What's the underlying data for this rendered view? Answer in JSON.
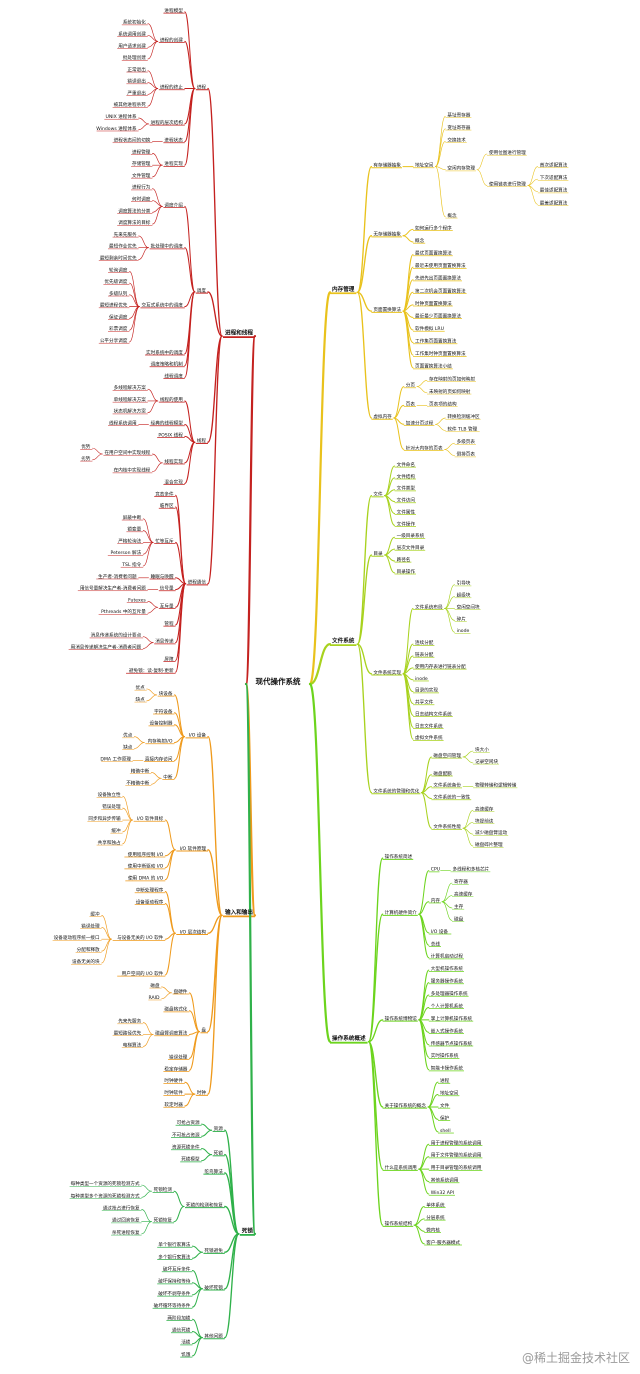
{
  "root": "现代操作系统",
  "watermark": "@稀土掘金技术社区",
  "colors": {
    "process": "#c4211f",
    "memory": "#e9c21c",
    "file": "#a8d21e",
    "overview": "#6cd41d",
    "io": "#ef9a1c",
    "deadlock": "#2fb14a"
  },
  "process": {
    "label": "进程和线程",
    "nodes": [
      {
        "label": "进程",
        "children": [
          {
            "label": "进程模型"
          },
          {
            "label": "进程的创建",
            "children": [
              {
                "label": "系统初始化"
              },
              {
                "label": "系统调用创建"
              },
              {
                "label": "用户请求创建"
              },
              {
                "label": "批处理创建"
              }
            ]
          },
          {
            "label": "进程的终止",
            "children": [
              {
                "label": "正常退出"
              },
              {
                "label": "错误退出"
              },
              {
                "label": "严重退出"
              },
              {
                "label": "被其他进程杀死"
              }
            ]
          },
          {
            "label": "进程的层次结构",
            "children": [
              {
                "label": "UNIX 进程体系"
              },
              {
                "label": "Windows 进程体系"
              }
            ]
          },
          {
            "label": "进程状态",
            "children": [
              {
                "label": "进程状态间的切换"
              }
            ]
          },
          {
            "label": "进程实现",
            "children": [
              {
                "label": "进程管理"
              },
              {
                "label": "存储管理"
              },
              {
                "label": "文件管理"
              }
            ]
          }
        ]
      },
      {
        "label": "调度",
        "children": [
          {
            "label": "调度介绍",
            "children": [
              {
                "label": "进程行为"
              },
              {
                "label": "何时调度"
              },
              {
                "label": "调度算法的分类"
              },
              {
                "label": "调度算法的目标"
              }
            ]
          },
          {
            "label": "批处理中的调度",
            "children": [
              {
                "label": "先来先服务"
              },
              {
                "label": "最短作业优先"
              },
              {
                "label": "最短剩余时间优先"
              }
            ]
          },
          {
            "label": "交互式系统中的调度",
            "children": [
              {
                "label": "轮询调度"
              },
              {
                "label": "优先级调度"
              },
              {
                "label": "多级队列"
              },
              {
                "label": "最短进程优先"
              },
              {
                "label": "保证调度"
              },
              {
                "label": "彩票调度"
              },
              {
                "label": "公平分享调度"
              }
            ]
          },
          {
            "label": "实时系统中的调度"
          },
          {
            "label": "调度策略和机制"
          },
          {
            "label": "线程调度"
          }
        ]
      },
      {
        "label": "线程",
        "children": [
          {
            "label": "线程的使用",
            "children": [
              {
                "label": "多线程解决方案"
              },
              {
                "label": "单线程解决方案"
              },
              {
                "label": "状态机解决方案"
              }
            ]
          },
          {
            "label": "经典的线程模型",
            "children": [
              {
                "label": "线程系统调用"
              }
            ]
          },
          {
            "label": "POSIX 线程"
          },
          {
            "label": "线程实现",
            "children": [
              {
                "label": "在用户空间中实现线程",
                "children": [
                  {
                    "label": "优势"
                  },
                  {
                    "label": "劣势"
                  }
                ]
              },
              {
                "label": "在内核中实现线程"
              }
            ]
          },
          {
            "label": "混合实现"
          }
        ]
      },
      {
        "label": "进程通信",
        "children": [
          {
            "label": "竞态条件"
          },
          {
            "label": "临界区"
          },
          {
            "label": "忙等互斥",
            "children": [
              {
                "label": "屏蔽中断"
              },
              {
                "label": "锁变量"
              },
              {
                "label": "严格轮询法"
              },
              {
                "label": "Peterson 解法"
              },
              {
                "label": "TSL 指令"
              }
            ]
          },
          {
            "label": "睡眠与唤醒",
            "children": [
              {
                "label": "生产者-消费者问题"
              }
            ]
          },
          {
            "label": "信号量",
            "children": [
              {
                "label": "用信号量解决生产者-消费者问题"
              }
            ]
          },
          {
            "label": "互斥量",
            "children": [
              {
                "label": "Futexes"
              },
              {
                "label": "Pthreads 中的互斥量"
              }
            ]
          },
          {
            "label": "管程"
          },
          {
            "label": "消息传递",
            "children": [
              {
                "label": "消息传递系统的设计要点"
              },
              {
                "label": "用消息传递解决生产者-消费者问题"
              }
            ]
          },
          {
            "label": "屏障"
          },
          {
            "label": "避免锁：读-复制-更新"
          }
        ]
      }
    ]
  },
  "io": {
    "label": "输入和输出",
    "nodes": [
      {
        "label": "I/O 设备",
        "children": [
          {
            "label": "块设备",
            "children": [
              {
                "label": "优点"
              },
              {
                "label": "缺点"
              }
            ]
          },
          {
            "label": "字符设备"
          },
          {
            "label": "设备控制器"
          },
          {
            "label": "内存映射I/O",
            "children": [
              {
                "label": "优点"
              },
              {
                "label": "缺点"
              }
            ]
          },
          {
            "label": "直接内存访问",
            "children": [
              {
                "label": "DMA 工作原理"
              }
            ]
          },
          {
            "label": "中断",
            "children": [
              {
                "label": "精确中断"
              },
              {
                "label": "不精确中断"
              }
            ]
          }
        ]
      },
      {
        "label": "I/O 软件原理",
        "children": [
          {
            "label": "I/O 软件目标",
            "children": [
              {
                "label": "设备独立性"
              },
              {
                "label": "错误处理"
              },
              {
                "label": "同步和异步传输"
              },
              {
                "label": "缓冲"
              },
              {
                "label": "共享和独占"
              }
            ]
          },
          {
            "label": "使用程序控制 I/O"
          },
          {
            "label": "使用中断驱动 I/O"
          },
          {
            "label": "使用 DMA 的 I/O"
          }
        ]
      },
      {
        "label": "I/O 层次结构",
        "children": [
          {
            "label": "中断处理程序"
          },
          {
            "label": "设备驱动程序"
          },
          {
            "label": "与设备无关的 I/O 软件",
            "children": [
              {
                "label": "缓冲"
              },
              {
                "label": "错误处理"
              },
              {
                "label": "设备驱动程序统一接口"
              },
              {
                "label": "分配和释放"
              },
              {
                "label": "设备无关的块"
              }
            ]
          },
          {
            "label": "用户空间的 I/O 软件"
          }
        ]
      },
      {
        "label": "盘",
        "children": [
          {
            "label": "盘硬件",
            "children": [
              {
                "label": "磁盘"
              },
              {
                "label": "RAID"
              }
            ]
          },
          {
            "label": "磁盘格式化"
          },
          {
            "label": "磁盘臂调度算法",
            "children": [
              {
                "label": "先来先服务"
              },
              {
                "label": "最短路径优先"
              },
              {
                "label": "电梯算法"
              }
            ]
          },
          {
            "label": "错误处理"
          },
          {
            "label": "稳定存储器"
          }
        ]
      },
      {
        "label": "时钟",
        "children": [
          {
            "label": "时钟硬件"
          },
          {
            "label": "时钟软件"
          },
          {
            "label": "软定时器"
          }
        ]
      }
    ]
  },
  "deadlock": {
    "label": "死锁",
    "nodes": [
      {
        "label": "资源",
        "children": [
          {
            "label": "可抢占资源"
          },
          {
            "label": "不可抢占资源"
          }
        ]
      },
      {
        "label": "死锁",
        "children": [
          {
            "label": "资源死锁条件"
          },
          {
            "label": "死锁模型"
          }
        ]
      },
      {
        "label": "鸵鸟算法"
      },
      {
        "label": "死锁的检测和恢复",
        "children": [
          {
            "label": "死锁检测",
            "children": [
              {
                "label": "每种类型一个资源的死锁检测方式"
              },
              {
                "label": "每种类型多个资源的死锁检测方式"
              }
            ]
          },
          {
            "label": "死锁恢复",
            "children": [
              {
                "label": "通过抢占进行恢复"
              },
              {
                "label": "通过回滚恢复"
              },
              {
                "label": "杀死进程恢复"
              }
            ]
          }
        ]
      },
      {
        "label": "死锁避免",
        "children": [
          {
            "label": "单个银行家算法"
          },
          {
            "label": "多个银行家算法"
          }
        ]
      },
      {
        "label": "破坏死锁",
        "children": [
          {
            "label": "破坏互斥条件"
          },
          {
            "label": "破坏保持和等待"
          },
          {
            "label": "破坏不剥夺条件"
          },
          {
            "label": "破坏循环等待条件"
          }
        ]
      },
      {
        "label": "其他问题",
        "children": [
          {
            "label": "两阶段加锁"
          },
          {
            "label": "通信死锁"
          },
          {
            "label": "活锁"
          },
          {
            "label": "饥饿"
          }
        ]
      }
    ]
  },
  "memory": {
    "label": "内存管理",
    "nodes": [
      {
        "label": "有存储器抽象",
        "children": [
          {
            "label": "地址空间",
            "children": [
              {
                "label": "基址寄存器"
              },
              {
                "label": "变址寄存器"
              },
              {
                "label": "交换技术"
              },
              {
                "label": "空闲内存管理",
                "children": [
                  {
                    "label": "使用位图进行管理"
                  },
                  {
                    "label": "使用链表进行管理",
                    "children": [
                      {
                        "label": "首次适配算法"
                      },
                      {
                        "label": "下次适配算法"
                      },
                      {
                        "label": "最佳适配算法"
                      },
                      {
                        "label": "最差适配算法"
                      }
                    ]
                  }
                ]
              },
              {
                "label": "概念"
              }
            ]
          }
        ]
      },
      {
        "label": "无存储器抽象",
        "children": [
          {
            "label": "如何运行多个程序"
          },
          {
            "label": "概念"
          }
        ]
      },
      {
        "label": "页面置换算法",
        "children": [
          {
            "label": "最优页面置换算法"
          },
          {
            "label": "最近未使用页面置换算法"
          },
          {
            "label": "先进先出页面置换算法"
          },
          {
            "label": "第二次机会页面置换算法"
          },
          {
            "label": "时钟页面置换算法"
          },
          {
            "label": "最近最少页面置换算法"
          },
          {
            "label": "软件模拟 LRU"
          },
          {
            "label": "工作集页面置换算法"
          },
          {
            "label": "工作集时钟页面置换算法"
          },
          {
            "label": "页面置换算法小结"
          }
        ]
      },
      {
        "label": "虚拟内存",
        "children": [
          {
            "label": "分页",
            "children": [
              {
                "label": "存在映射的页如何映射"
              },
              {
                "label": "未映射的页如何映射"
              }
            ]
          },
          {
            "label": "页表",
            "children": [
              {
                "label": "页表项的结构"
              }
            ]
          },
          {
            "label": "加速分页过程",
            "children": [
              {
                "label": "转换检测缓冲区"
              },
              {
                "label": "软件 TLB 管理"
              }
            ]
          },
          {
            "label": "针对大内存的页表",
            "children": [
              {
                "label": "多级页表"
              },
              {
                "label": "倒排页表"
              }
            ]
          }
        ]
      }
    ]
  },
  "file": {
    "label": "文件系统",
    "nodes": [
      {
        "label": "文件",
        "children": [
          {
            "label": "文件命名"
          },
          {
            "label": "文件结构"
          },
          {
            "label": "文件类型"
          },
          {
            "label": "文件访问"
          },
          {
            "label": "文件属性"
          },
          {
            "label": "文件操作"
          }
        ]
      },
      {
        "label": "目录",
        "children": [
          {
            "label": "一级目录系统"
          },
          {
            "label": "层次文件目录"
          },
          {
            "label": "路径名"
          },
          {
            "label": "目录操作"
          }
        ]
      },
      {
        "label": "文件系统实现",
        "children": [
          {
            "label": "文件系统布局",
            "children": [
              {
                "label": "引导块"
              },
              {
                "label": "超级块"
              },
              {
                "label": "空闲空间块"
              },
              {
                "label": "碎片"
              },
              {
                "label": "inode"
              }
            ]
          },
          {
            "label": "连续分配"
          },
          {
            "label": "链表分配"
          },
          {
            "label": "使用内存表进行链表分配"
          },
          {
            "label": "inode"
          },
          {
            "label": "目录的实现"
          },
          {
            "label": "共享文件"
          },
          {
            "label": "日志结构文件系统"
          },
          {
            "label": "日志文件系统"
          },
          {
            "label": "虚拟文件系统"
          }
        ]
      },
      {
        "label": "文件系统的管理和优化",
        "children": [
          {
            "label": "磁盘空间管理",
            "children": [
              {
                "label": "块大小"
              },
              {
                "label": "记录空闲块"
              }
            ]
          },
          {
            "label": "磁盘配额"
          },
          {
            "label": "文件系统备份",
            "children": [
              {
                "label": "物理转储和逻辑转储"
              }
            ]
          },
          {
            "label": "文件系统的一致性"
          },
          {
            "label": "文件系统性能",
            "children": [
              {
                "label": "高速缓存"
              },
              {
                "label": "块提前读"
              },
              {
                "label": "减少磁盘臂运动"
              },
              {
                "label": "磁盘碎片整理"
              }
            ]
          }
        ]
      }
    ]
  },
  "overview": {
    "label": "操作系统概述",
    "nodes": [
      {
        "label": "操作系统简述"
      },
      {
        "label": "计算机硬件简介",
        "children": [
          {
            "label": "CPU",
            "children": [
              {
                "label": "多线程和多核芯片"
              }
            ]
          },
          {
            "label": "内存",
            "children": [
              {
                "label": "寄存器"
              },
              {
                "label": "高速缓存"
              },
              {
                "label": "主存"
              },
              {
                "label": "磁盘"
              }
            ]
          },
          {
            "label": "I/O 设备"
          },
          {
            "label": "总线"
          },
          {
            "label": "计算机启动过程"
          }
        ]
      },
      {
        "label": "操作系统博物馆",
        "children": [
          {
            "label": "大型机操作系统"
          },
          {
            "label": "服务器操作系统"
          },
          {
            "label": "多处理器操作系统"
          },
          {
            "label": "个人计算机系统"
          },
          {
            "label": "掌上计算机操作系统"
          },
          {
            "label": "嵌入式操作系统"
          },
          {
            "label": "传感器节点操作系统"
          },
          {
            "label": "实时操作系统"
          },
          {
            "label": "智能卡操作系统"
          }
        ]
      },
      {
        "label": "关于操作系统的概念",
        "children": [
          {
            "label": "进程"
          },
          {
            "label": "地址空间"
          },
          {
            "label": "文件"
          },
          {
            "label": "保护"
          },
          {
            "label": "shell"
          }
        ]
      },
      {
        "label": "什么是系统调用",
        "children": [
          {
            "label": "用于进程管理的系统调用"
          },
          {
            "label": "用于文件管理的系统调用"
          },
          {
            "label": "用于目录管理的系统调用"
          },
          {
            "label": "其他系统调用"
          },
          {
            "label": "Win32 API"
          }
        ]
      },
      {
        "label": "操作系统结构",
        "children": [
          {
            "label": "单体系统"
          },
          {
            "label": "分层系统"
          },
          {
            "label": "微内核"
          },
          {
            "label": "客户-服务器模式"
          }
        ]
      }
    ]
  }
}
